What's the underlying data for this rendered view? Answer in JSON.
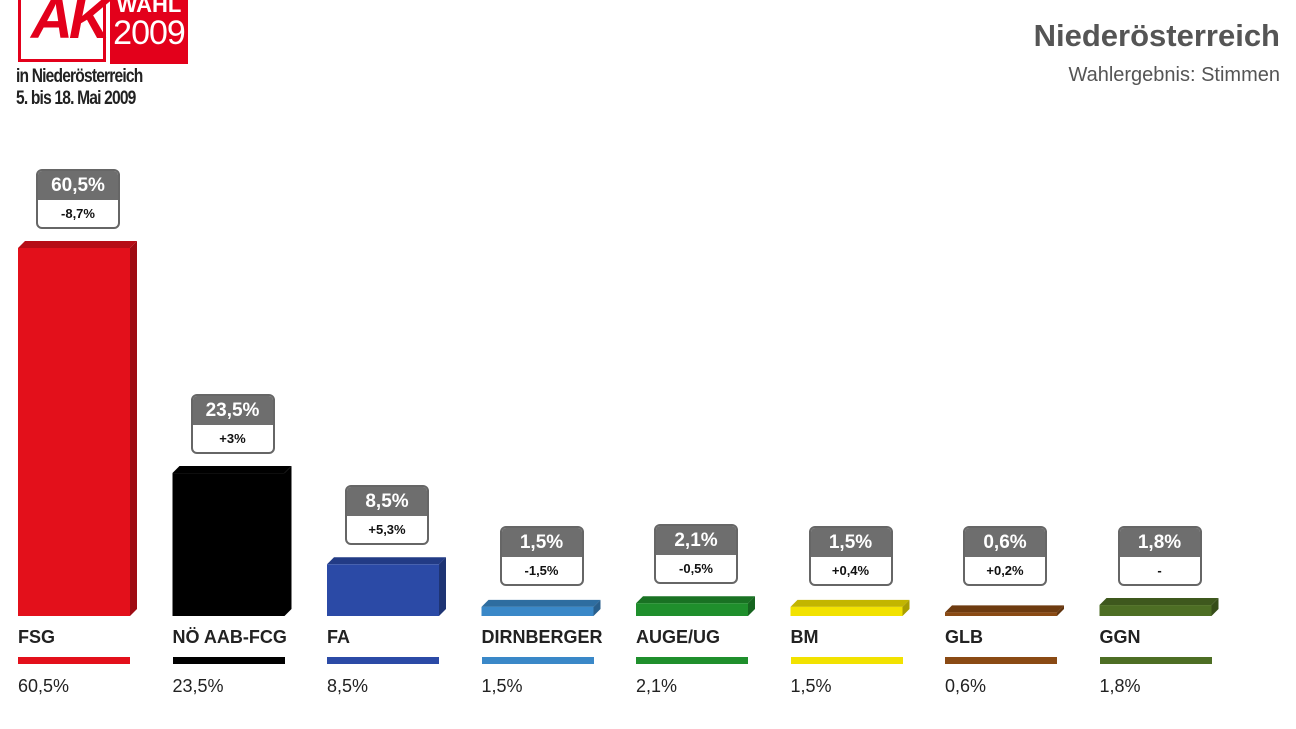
{
  "logo": {
    "ak": "AK",
    "wahl": "WAHL",
    "year": "2009",
    "line1": "in Niederösterreich",
    "line2": "5. bis 18. Mai 2009"
  },
  "header": {
    "title": "Niederösterreich",
    "subtitle": "Wahlergebnis: Stimmen"
  },
  "chart_data": {
    "type": "bar",
    "title": "Niederösterreich",
    "subtitle": "Wahlergebnis: Stimmen",
    "ylim": [
      0,
      60.5
    ],
    "grid": false,
    "categories": [
      "FSG",
      "NÖ AAB-FCG",
      "FA",
      "DIRNBERGER",
      "AUGE/UG",
      "BM",
      "GLB",
      "GGN"
    ],
    "values": [
      60.5,
      23.5,
      8.5,
      1.5,
      2.1,
      1.5,
      0.6,
      1.8
    ],
    "value_labels": [
      "60,5%",
      "23,5%",
      "8,5%",
      "1,5%",
      "2,1%",
      "1,5%",
      "0,6%",
      "1,8%"
    ],
    "change_labels": [
      "-8,7%",
      "+3%",
      "+5,3%",
      "-1,5%",
      "-0,5%",
      "+0,4%",
      "+0,2%",
      "-"
    ],
    "colors": [
      "#e3101b",
      "#000000",
      "#2b4aa6",
      "#3a88c8",
      "#1f8f2c",
      "#f2e200",
      "#8a4a14",
      "#4d6e24"
    ]
  }
}
